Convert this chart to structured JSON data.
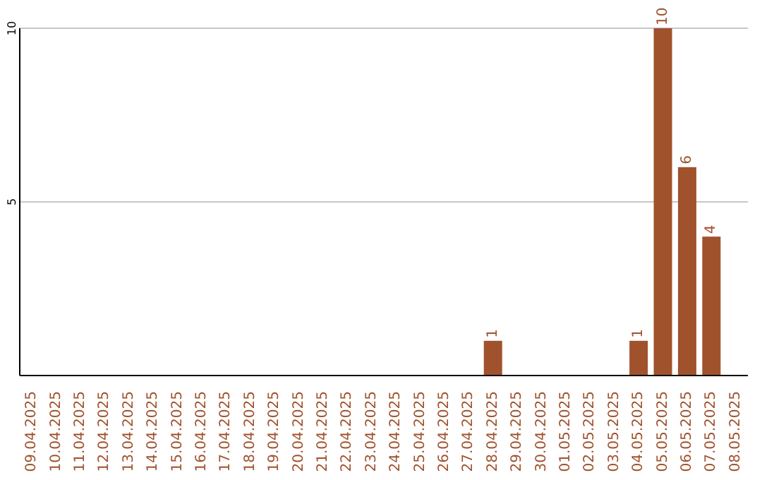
{
  "chart_data": {
    "type": "bar",
    "categories": [
      "09.04.2025",
      "10.04.2025",
      "11.04.2025",
      "12.04.2025",
      "13.04.2025",
      "14.04.2025",
      "15.04.2025",
      "16.04.2025",
      "17.04.2025",
      "18.04.2025",
      "19.04.2025",
      "20.04.2025",
      "21.04.2025",
      "22.04.2025",
      "23.04.2025",
      "24.04.2025",
      "25.04.2025",
      "26.04.2025",
      "27.04.2025",
      "28.04.2025",
      "29.04.2025",
      "30.04.2025",
      "01.05.2025",
      "02.05.2025",
      "03.05.2025",
      "04.05.2025",
      "05.05.2025",
      "06.05.2025",
      "07.05.2025",
      "08.05.2025"
    ],
    "series": [
      {
        "color": "#a0522d",
        "values": [
          0,
          0,
          0,
          0,
          0,
          0,
          0,
          0,
          0,
          0,
          0,
          0,
          0,
          0,
          0,
          0,
          0,
          0,
          0,
          1,
          0,
          0,
          0,
          0,
          0,
          1,
          10,
          6,
          4,
          0
        ]
      }
    ],
    "value_labels": [
      null,
      null,
      null,
      null,
      null,
      null,
      null,
      null,
      null,
      null,
      null,
      null,
      null,
      null,
      null,
      null,
      null,
      null,
      null,
      "1",
      null,
      null,
      null,
      null,
      null,
      "1",
      "10",
      "6",
      "4",
      null
    ],
    "ylim": [
      0,
      10
    ],
    "yticks": [
      5,
      10
    ],
    "grid": "y"
  }
}
